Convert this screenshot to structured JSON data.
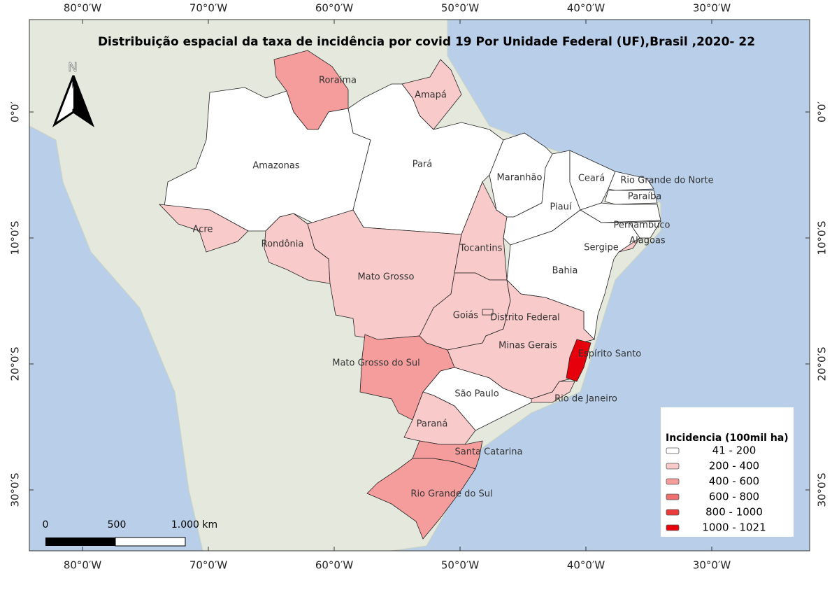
{
  "title": "Distribuição espacial da taxa de incidência por covid 19 Por Unidade  Federal (UF),Brasil ,2020- 22",
  "longitude_labels": [
    "80°0′W",
    "70°0′W",
    "60°0′W",
    "50°0′W",
    "40°0′W",
    "30°0′W"
  ],
  "latitude_labels": [
    "0°0′",
    "10°0′S",
    "20°0′S",
    "30°0′S"
  ],
  "north_label": "N",
  "scale_labels": [
    "0",
    "500",
    "1.000 km"
  ],
  "legend": {
    "title": "Incidencia  (100mil ha)",
    "items": [
      {
        "label": "41 - 200",
        "color": "#ffffff"
      },
      {
        "label": "200 - 400",
        "color": "#f9caca"
      },
      {
        "label": "400 - 600",
        "color": "#f59c9c"
      },
      {
        "label": "600 - 800",
        "color": "#ef6f6f"
      },
      {
        "label": "800 - 1000",
        "color": "#ea3a3a"
      },
      {
        "label": "1000 - 1021",
        "color": "#e5000b"
      }
    ]
  },
  "states": [
    {
      "name": "Roraima",
      "class": 2
    },
    {
      "name": "Amapá",
      "class": 1
    },
    {
      "name": "Amazonas",
      "class": 0
    },
    {
      "name": "Pará",
      "class": 0
    },
    {
      "name": "Acre",
      "class": 1
    },
    {
      "name": "Rondônia",
      "class": 1
    },
    {
      "name": "Mato Grosso",
      "class": 1
    },
    {
      "name": "Tocantins",
      "class": 1
    },
    {
      "name": "Maranhão",
      "class": 0
    },
    {
      "name": "Piauí",
      "class": 0
    },
    {
      "name": "Ceará",
      "class": 0
    },
    {
      "name": "Rio Grande do Norte",
      "class": 0
    },
    {
      "name": "Paraíba",
      "class": 0
    },
    {
      "name": "Pernambuco",
      "class": 0
    },
    {
      "name": "Alagoas",
      "class": 0
    },
    {
      "name": "Sergipe",
      "class": 1
    },
    {
      "name": "Bahia",
      "class": 0
    },
    {
      "name": "Goiás",
      "class": 1
    },
    {
      "name": "Distrito Federal",
      "class": 1
    },
    {
      "name": "Minas Gerais",
      "class": 1
    },
    {
      "name": "Espírito Santo",
      "class": 5
    },
    {
      "name": "Rio de Janeiro",
      "class": 1
    },
    {
      "name": "São Paulo",
      "class": 0
    },
    {
      "name": "Mato Grosso do Sul",
      "class": 2
    },
    {
      "name": "Paraná",
      "class": 1
    },
    {
      "name": "Santa Catarina",
      "class": 2
    },
    {
      "name": "Rio Grande do Sul",
      "class": 2
    }
  ]
}
